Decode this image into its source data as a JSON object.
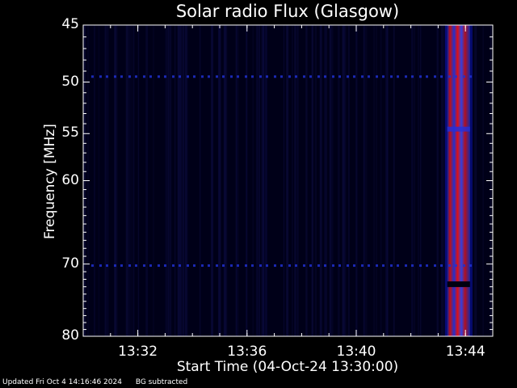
{
  "chart_data": {
    "type": "heatmap",
    "title": "Solar radio Flux (Glasgow)",
    "xlabel": "Start Time (04-Oct-24 13:30:00)",
    "ylabel": "Frequency [MHz]",
    "x_ticks": [
      "13:32",
      "13:36",
      "13:40",
      "13:44"
    ],
    "y_ticks": [
      45,
      50,
      55,
      60,
      70,
      80
    ],
    "xlim": [
      "13:30:00",
      "13:45:00"
    ],
    "ylim": [
      80,
      45
    ],
    "y_scale": "log",
    "colormap": "black-blue-red",
    "features": [
      {
        "kind": "burst",
        "start": "13:43:20",
        "end": "13:44:10",
        "freq_range": [
          45,
          80
        ]
      },
      {
        "kind": "narrowband-interference",
        "freq_mhz": 49.5
      },
      {
        "kind": "narrowband-interference",
        "freq_mhz": 70.2
      }
    ]
  },
  "footer": {
    "updated": "Updated Fri Oct  4 14:16:46 2024",
    "note": "BG subtracted"
  }
}
